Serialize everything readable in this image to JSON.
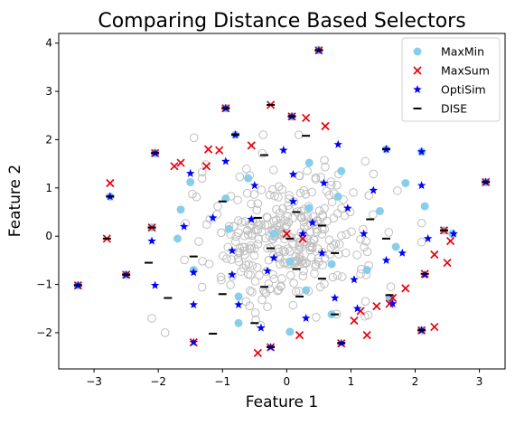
{
  "chart_data": {
    "type": "scatter",
    "title": "Comparing Distance Based Selectors",
    "xlabel": "Feature 1",
    "ylabel": "Feature 2",
    "xlim": [
      -3.55,
      3.4
    ],
    "ylim": [
      -2.75,
      4.2
    ],
    "xticks": [
      -3,
      -2,
      -1,
      0,
      1,
      2,
      3
    ],
    "yticks": [
      -2,
      -1,
      0,
      1,
      2,
      3,
      4
    ],
    "xtick_labels": [
      "−3",
      "−2",
      "−1",
      "0",
      "1",
      "2",
      "3"
    ],
    "ytick_labels": [
      "−2",
      "−1",
      "0",
      "1",
      "2",
      "3",
      "4"
    ],
    "grid": false,
    "legend_position": "top-right",
    "background_points_color": "#bfbfbf",
    "series": [
      {
        "name": "MaxMin",
        "marker": "circle",
        "color": "#87ceeb",
        "points": [
          [
            0.5,
            3.85
          ],
          [
            -0.95,
            2.65
          ],
          [
            0.08,
            2.48
          ],
          [
            -0.8,
            2.1
          ],
          [
            -2.05,
            1.72
          ],
          [
            1.55,
            1.8
          ],
          [
            2.1,
            1.75
          ],
          [
            -2.75,
            0.82
          ],
          [
            3.1,
            1.12
          ],
          [
            -2.1,
            0.18
          ],
          [
            -3.25,
            -1.02
          ],
          [
            -2.5,
            -0.8
          ],
          [
            0.35,
            1.52
          ],
          [
            0.85,
            1.35
          ],
          [
            -0.6,
            1.2
          ],
          [
            -1.5,
            1.12
          ],
          [
            1.45,
            0.52
          ],
          [
            2.15,
            0.62
          ],
          [
            -0.95,
            0.78
          ],
          [
            0.8,
            0.82
          ],
          [
            1.85,
            1.1
          ],
          [
            2.45,
            0.12
          ],
          [
            2.58,
            0.05
          ],
          [
            -1.65,
            0.55
          ],
          [
            0.35,
            0.58
          ],
          [
            1.7,
            -0.22
          ],
          [
            -0.2,
            0.05
          ],
          [
            0.05,
            -0.52
          ],
          [
            0.7,
            -0.58
          ],
          [
            1.25,
            -0.7
          ],
          [
            -1.45,
            -0.7
          ],
          [
            -0.75,
            -1.25
          ],
          [
            -0.75,
            -1.8
          ],
          [
            0.05,
            -1.98
          ],
          [
            0.7,
            -1.62
          ],
          [
            1.6,
            -1.28
          ],
          [
            2.1,
            -1.95
          ],
          [
            0.3,
            -1.12
          ],
          [
            -0.9,
            0.15
          ],
          [
            -1.7,
            -0.05
          ]
        ]
      },
      {
        "name": "MaxSum",
        "marker": "x",
        "color": "#e8000b",
        "points": [
          [
            0.5,
            3.85
          ],
          [
            -0.95,
            2.65
          ],
          [
            -0.25,
            2.72
          ],
          [
            0.08,
            2.48
          ],
          [
            0.3,
            2.45
          ],
          [
            -0.55,
            1.88
          ],
          [
            0.6,
            2.28
          ],
          [
            -1.22,
            1.8
          ],
          [
            -1.05,
            1.78
          ],
          [
            -1.65,
            1.52
          ],
          [
            -1.75,
            1.45
          ],
          [
            -1.25,
            1.45
          ],
          [
            -2.75,
            1.1
          ],
          [
            -2.05,
            1.72
          ],
          [
            3.1,
            1.12
          ],
          [
            -2.1,
            0.18
          ],
          [
            -2.8,
            -0.05
          ],
          [
            -3.25,
            -1.02
          ],
          [
            -2.5,
            -0.8
          ],
          [
            2.45,
            0.12
          ],
          [
            2.55,
            -0.1
          ],
          [
            2.5,
            -0.55
          ],
          [
            2.3,
            -0.38
          ],
          [
            2.15,
            -0.78
          ],
          [
            1.85,
            -1.08
          ],
          [
            1.65,
            -1.28
          ],
          [
            1.6,
            -1.4
          ],
          [
            1.4,
            -1.45
          ],
          [
            1.15,
            -1.55
          ],
          [
            1.05,
            -1.75
          ],
          [
            1.25,
            -2.05
          ],
          [
            0.85,
            -2.22
          ],
          [
            0.2,
            -2.05
          ],
          [
            -0.25,
            -2.3
          ],
          [
            -0.45,
            -2.42
          ],
          [
            -1.45,
            -2.2
          ],
          [
            2.3,
            -1.88
          ],
          [
            2.1,
            -1.95
          ],
          [
            0.0,
            0.05
          ],
          [
            0.25,
            -0.05
          ]
        ]
      },
      {
        "name": "OptiSim",
        "marker": "star",
        "color": "#0000ff",
        "points": [
          [
            0.5,
            3.85
          ],
          [
            -0.95,
            2.65
          ],
          [
            0.08,
            2.48
          ],
          [
            -0.8,
            2.1
          ],
          [
            -2.05,
            1.72
          ],
          [
            1.55,
            1.8
          ],
          [
            2.1,
            1.75
          ],
          [
            -2.75,
            0.82
          ],
          [
            3.1,
            1.12
          ],
          [
            -0.95,
            1.55
          ],
          [
            0.8,
            1.9
          ],
          [
            -0.05,
            1.78
          ],
          [
            0.1,
            1.28
          ],
          [
            0.58,
            1.1
          ],
          [
            1.35,
            0.95
          ],
          [
            2.1,
            1.05
          ],
          [
            -1.5,
            1.3
          ],
          [
            -0.5,
            1.05
          ],
          [
            0.1,
            0.72
          ],
          [
            -1.15,
            0.38
          ],
          [
            -1.6,
            0.2
          ],
          [
            -0.55,
            0.35
          ],
          [
            0.4,
            0.28
          ],
          [
            0.25,
            0.05
          ],
          [
            0.95,
            0.58
          ],
          [
            1.2,
            0.05
          ],
          [
            2.2,
            -0.05
          ],
          [
            -2.1,
            -0.1
          ],
          [
            -1.45,
            -0.75
          ],
          [
            -0.85,
            -0.3
          ],
          [
            -0.2,
            -0.45
          ],
          [
            0.55,
            -0.35
          ],
          [
            1.05,
            -0.9
          ],
          [
            1.55,
            -0.5
          ],
          [
            2.6,
            0.05
          ],
          [
            -2.5,
            -0.8
          ],
          [
            -2.05,
            -1.02
          ],
          [
            -0.85,
            -0.8
          ],
          [
            -0.3,
            -0.72
          ],
          [
            -3.25,
            -1.02
          ],
          [
            -1.45,
            -1.42
          ],
          [
            -0.75,
            -1.42
          ],
          [
            0.75,
            -1.28
          ],
          [
            1.65,
            -1.4
          ],
          [
            2.15,
            -0.8
          ],
          [
            -1.45,
            -2.2
          ],
          [
            -0.4,
            -1.9
          ],
          [
            -0.25,
            -2.3
          ],
          [
            0.3,
            -1.7
          ],
          [
            0.85,
            -2.22
          ],
          [
            2.1,
            -1.95
          ],
          [
            1.1,
            -1.5
          ],
          [
            1.8,
            -0.35
          ]
        ]
      },
      {
        "name": "DISE",
        "marker": "hline",
        "color": "#000000",
        "points": [
          [
            0.5,
            3.85
          ],
          [
            -0.95,
            2.65
          ],
          [
            -0.25,
            2.72
          ],
          [
            0.08,
            2.48
          ],
          [
            -0.8,
            2.1
          ],
          [
            0.3,
            2.08
          ],
          [
            -0.35,
            1.68
          ],
          [
            -2.05,
            1.72
          ],
          [
            1.55,
            1.8
          ],
          [
            -2.75,
            0.82
          ],
          [
            3.1,
            1.12
          ],
          [
            -1.0,
            0.72
          ],
          [
            0.15,
            0.5
          ],
          [
            -0.45,
            0.38
          ],
          [
            0.55,
            0.22
          ],
          [
            -2.1,
            0.18
          ],
          [
            -2.8,
            -0.05
          ],
          [
            -2.15,
            -0.55
          ],
          [
            -1.45,
            -0.42
          ],
          [
            -0.25,
            -0.25
          ],
          [
            0.05,
            -0.05
          ],
          [
            0.75,
            -0.35
          ],
          [
            1.3,
            0.35
          ],
          [
            1.55,
            -0.05
          ],
          [
            -3.25,
            -1.02
          ],
          [
            -2.5,
            -0.8
          ],
          [
            -1.85,
            -1.28
          ],
          [
            -1.0,
            -1.2
          ],
          [
            -0.35,
            -1.05
          ],
          [
            0.15,
            -0.68
          ],
          [
            0.55,
            -0.88
          ],
          [
            -1.15,
            -2.02
          ],
          [
            -0.25,
            -2.3
          ],
          [
            0.2,
            -1.25
          ],
          [
            0.75,
            -1.62
          ],
          [
            1.6,
            -1.22
          ],
          [
            2.45,
            0.12
          ],
          [
            2.15,
            -0.78
          ],
          [
            2.1,
            -1.95
          ],
          [
            -0.5,
            -1.8
          ],
          [
            0.85,
            -2.22
          ]
        ]
      }
    ]
  }
}
